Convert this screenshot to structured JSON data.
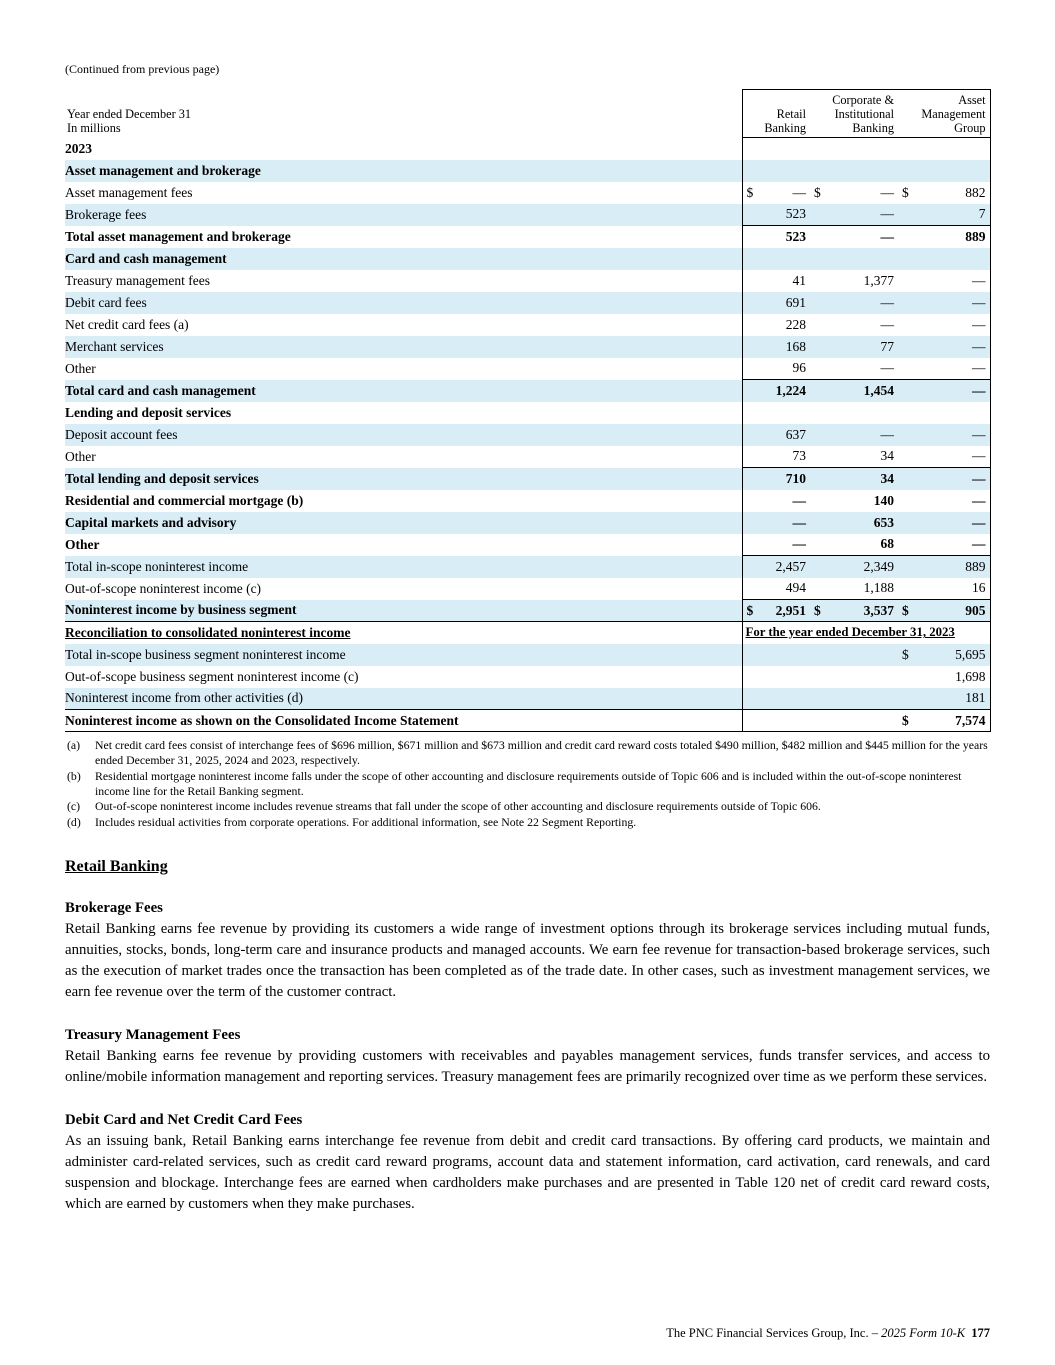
{
  "page": {
    "continued_note": "(Continued from previous page)",
    "footer": {
      "company": "The PNC Financial Services Group, Inc. –",
      "form": "2025 Form 10-K",
      "page_number": "177"
    }
  },
  "colors": {
    "row_shade": "#D9EDF7"
  },
  "table": {
    "header": {
      "label_line1": "Year ended December 31",
      "label_line2": "In millions",
      "col1": "Retail\nBanking",
      "col2": "Corporate &\nInstitutional\nBanking",
      "col3": "Asset\nManagement\nGroup"
    },
    "rows": [
      {
        "label": "2023",
        "type": "year",
        "indent": 0,
        "bold": true,
        "shade": false,
        "values": [
          "",
          "",
          ""
        ]
      },
      {
        "label": "Asset management and brokerage",
        "indent": 0,
        "bold": true,
        "shade": true,
        "values": [
          "",
          "",
          ""
        ]
      },
      {
        "label": "Asset management fees",
        "indent": 1,
        "shade": false,
        "dollar": [
          true,
          true,
          true
        ],
        "values": [
          "—",
          "—",
          "882"
        ]
      },
      {
        "label": "Brokerage fees",
        "indent": 1,
        "shade": true,
        "values": [
          "523",
          "—",
          "7"
        ]
      },
      {
        "label": "Total asset management and brokerage",
        "indent": 2,
        "bold": true,
        "shade": false,
        "values": [
          "523",
          "—",
          "889"
        ],
        "rule_top": true
      },
      {
        "label": "Card and cash management",
        "indent": 0,
        "bold": true,
        "shade": true,
        "values": [
          "",
          "",
          ""
        ]
      },
      {
        "label": "Treasury management fees",
        "indent": 1,
        "shade": false,
        "values": [
          "41",
          "1,377",
          "—"
        ]
      },
      {
        "label": "Debit card fees",
        "indent": 1,
        "shade": true,
        "values": [
          "691",
          "—",
          "—"
        ]
      },
      {
        "label": "Net credit card fees (a)",
        "indent": 1,
        "shade": false,
        "values": [
          "228",
          "—",
          "—"
        ]
      },
      {
        "label": "Merchant services",
        "indent": 1,
        "shade": true,
        "values": [
          "168",
          "77",
          "—"
        ]
      },
      {
        "label": "Other",
        "indent": 1,
        "shade": false,
        "values": [
          "96",
          "—",
          "—"
        ]
      },
      {
        "label": "Total card and cash management",
        "indent": 2,
        "bold": true,
        "shade": true,
        "values": [
          "1,224",
          "1,454",
          "—"
        ],
        "rule_top": true
      },
      {
        "label": "Lending and deposit services",
        "indent": 0,
        "bold": true,
        "shade": false,
        "values": [
          "",
          "",
          ""
        ]
      },
      {
        "label": "Deposit account fees",
        "indent": 1,
        "shade": true,
        "values": [
          "637",
          "—",
          "—"
        ]
      },
      {
        "label": "Other",
        "indent": 1,
        "shade": false,
        "values": [
          "73",
          "34",
          "—"
        ]
      },
      {
        "label": "Total lending and deposit services",
        "indent": 2,
        "bold": true,
        "shade": true,
        "values": [
          "710",
          "34",
          "—"
        ],
        "rule_top": true
      },
      {
        "label": "Residential and commercial mortgage (b)",
        "indent": 0,
        "bold": true,
        "shade": false,
        "values": [
          "—",
          "140",
          "—"
        ]
      },
      {
        "label": "Capital markets and advisory",
        "indent": 0,
        "bold": true,
        "shade": true,
        "values": [
          "—",
          "653",
          "—"
        ]
      },
      {
        "label": "Other",
        "indent": 0,
        "bold": true,
        "shade": false,
        "values": [
          "—",
          "68",
          "—"
        ]
      },
      {
        "label": "Total in-scope noninterest income",
        "indent": 2,
        "shade": true,
        "values": [
          "2,457",
          "2,349",
          "889"
        ],
        "rule_top": true
      },
      {
        "label": "Out-of-scope noninterest income (c)",
        "indent": 2,
        "shade": false,
        "values": [
          "494",
          "1,188",
          "16"
        ]
      },
      {
        "label": "Noninterest income by business segment",
        "indent": 2,
        "bold": true,
        "shade": true,
        "dollar": [
          true,
          true,
          true
        ],
        "values": [
          "2,951",
          "3,537",
          "905"
        ],
        "rule_top": true,
        "rule_bottom": true
      },
      {
        "label": "Reconciliation to consolidated noninterest income",
        "type": "recon_header",
        "indent": 0,
        "bold": true,
        "shade": false,
        "right_text": "For the year ended December 31, 2023"
      },
      {
        "label": "Total in-scope business segment noninterest income",
        "indent": 2,
        "shade": true,
        "dollar": [
          false,
          false,
          true
        ],
        "values": [
          "",
          "",
          "5,695"
        ]
      },
      {
        "label": "Out-of-scope business segment noninterest income (c)",
        "indent": 2,
        "shade": false,
        "values": [
          "",
          "",
          "1,698"
        ]
      },
      {
        "label": "Noninterest income from other activities (d)",
        "indent": 2,
        "shade": true,
        "values": [
          "",
          "",
          "181"
        ]
      },
      {
        "label": "Noninterest income as shown on the Consolidated Income Statement",
        "indent": 3,
        "bold": true,
        "shade": false,
        "dollar": [
          false,
          false,
          true
        ],
        "values": [
          "",
          "",
          "7,574"
        ],
        "rule_top_full": true,
        "rule_bottom": true
      }
    ]
  },
  "footnotes": [
    {
      "marker": "(a)",
      "text": "Net credit card fees consist of interchange fees of $696 million, $671 million and $673 million and credit card reward costs totaled $490 million, $482 million and $445 million for the years ended December 31, 2025, 2024 and 2023, respectively."
    },
    {
      "marker": "(b)",
      "text": "Residential mortgage noninterest income falls under the scope of other accounting and disclosure requirements outside of Topic 606 and is included within the out-of-scope noninterest income line for the Retail Banking segment."
    },
    {
      "marker": "(c)",
      "text": "Out-of-scope noninterest income includes revenue streams that fall under the scope of other accounting and disclosure requirements outside of Topic 606."
    },
    {
      "marker": "(d)",
      "text": "Includes residual activities from corporate operations. For additional information, see Note 22 Segment Reporting."
    }
  ],
  "sections": {
    "retail_banking": {
      "title": "Retail Banking",
      "subsections": [
        {
          "title": "Brokerage Fees",
          "body": "Retail Banking earns fee revenue by providing its customers a wide range of investment options through its brokerage services including mutual funds, annuities, stocks, bonds, long-term care and insurance products and managed accounts. We earn fee revenue for transaction-based brokerage services, such as the execution of market trades once the transaction has been completed as of the trade date. In other cases, such as investment management services, we earn fee revenue over the term of the customer contract."
        },
        {
          "title": "Treasury Management Fees",
          "body": "Retail Banking earns fee revenue by providing customers with receivables and payables management services, funds transfer services, and access to online/mobile information management and reporting services. Treasury management fees are primarily recognized over time as we perform these services."
        },
        {
          "title": "Debit Card and Net Credit Card Fees",
          "body": "As an issuing bank, Retail Banking earns interchange fee revenue from debit and credit card transactions. By offering card products, we maintain and administer card-related services, such as credit card reward programs, account data and statement information, card activation, card renewals, and card suspension and blockage. Interchange fees are earned when cardholders make purchases and are presented in Table 120 net of credit card reward costs, which are earned by customers when they make purchases."
        }
      ]
    }
  }
}
